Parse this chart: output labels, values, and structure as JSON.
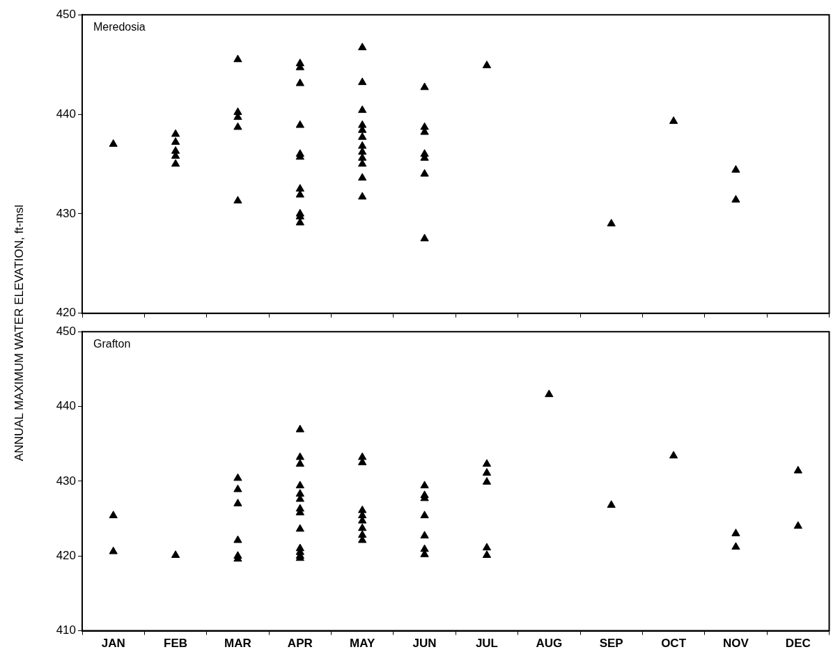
{
  "chart_data": [
    {
      "type": "scatter",
      "title": "Meredosia",
      "ylabel": "ANNUAL MAXIMUM WATER ELEVATION, ft-msl",
      "categories": [
        "JAN",
        "FEB",
        "MAR",
        "APR",
        "MAY",
        "JUN",
        "JUL",
        "AUG",
        "SEP",
        "OCT",
        "NOV",
        "DEC"
      ],
      "ylim": [
        420,
        450
      ],
      "yticks": [
        420,
        430,
        440,
        450
      ],
      "tick_labels": "y",
      "grid": false,
      "legend": false,
      "marker": "triangle",
      "series": [
        {
          "color": "#000000",
          "x": [
            "JAN",
            "FEB",
            "FEB",
            "FEB",
            "FEB",
            "FEB",
            "MAR",
            "MAR",
            "MAR",
            "MAR",
            "MAR",
            "APR",
            "APR",
            "APR",
            "APR",
            "APR",
            "APR",
            "APR",
            "APR",
            "APR",
            "APR",
            "APR",
            "MAY",
            "MAY",
            "MAY",
            "MAY",
            "MAY",
            "MAY",
            "MAY",
            "MAY",
            "MAY",
            "MAY",
            "MAY",
            "MAY",
            "JUN",
            "JUN",
            "JUN",
            "JUN",
            "JUN",
            "JUN",
            "JUN",
            "JUL",
            "SEP",
            "OCT",
            "NOV",
            "NOV"
          ],
          "values": [
            437,
            438,
            437.2,
            436.3,
            435.8,
            435,
            445.5,
            440.2,
            439.7,
            438.7,
            431.3,
            445.1,
            444.7,
            443.1,
            438.9,
            436,
            435.7,
            432.5,
            431.9,
            430,
            429.7,
            429.1,
            446.7,
            443.2,
            440.4,
            438.9,
            438.4,
            437.7,
            436.8,
            436.2,
            435.6,
            435,
            433.6,
            431.7,
            442.7,
            438.7,
            438.2,
            436,
            435.6,
            434,
            427.5,
            444.9,
            429,
            439.3,
            434.4,
            431.4
          ]
        }
      ]
    },
    {
      "type": "scatter",
      "title": "Grafton",
      "categories": [
        "JAN",
        "FEB",
        "MAR",
        "APR",
        "MAY",
        "JUN",
        "JUL",
        "AUG",
        "SEP",
        "OCT",
        "NOV",
        "DEC"
      ],
      "ylim": [
        410,
        450
      ],
      "yticks": [
        410,
        420,
        430,
        440,
        450
      ],
      "grid": false,
      "legend": false,
      "marker": "triangle",
      "series": [
        {
          "color": "#000000",
          "x": [
            "JAN",
            "JAN",
            "FEB",
            "MAR",
            "MAR",
            "MAR",
            "MAR",
            "MAR",
            "MAR",
            "APR",
            "APR",
            "APR",
            "APR",
            "APR",
            "APR",
            "APR",
            "APR",
            "APR",
            "APR",
            "APR",
            "APR",
            "APR",
            "MAY",
            "MAY",
            "MAY",
            "MAY",
            "MAY",
            "MAY",
            "MAY",
            "MAY",
            "JUN",
            "JUN",
            "JUN",
            "JUN",
            "JUN",
            "JUN",
            "JUN",
            "JUL",
            "JUL",
            "JUL",
            "JUL",
            "JUL",
            "AUG",
            "SEP",
            "OCT",
            "NOV",
            "NOV",
            "DEC",
            "DEC"
          ],
          "values": [
            425.4,
            420.6,
            420.1,
            430.4,
            428.9,
            427,
            422.1,
            420,
            419.6,
            436.9,
            433.2,
            432.3,
            429.4,
            428.3,
            427.6,
            426.3,
            425.8,
            423.6,
            421,
            420.5,
            420,
            419.7,
            433.2,
            432.5,
            426.1,
            425.4,
            424.7,
            423.7,
            422.8,
            422.1,
            429.4,
            428.1,
            427.7,
            425.4,
            422.7,
            420.9,
            420.2,
            432.3,
            431.1,
            429.9,
            421.1,
            420.1,
            441.6,
            426.8,
            433.4,
            423,
            421.2,
            431.4,
            424
          ]
        }
      ]
    }
  ]
}
